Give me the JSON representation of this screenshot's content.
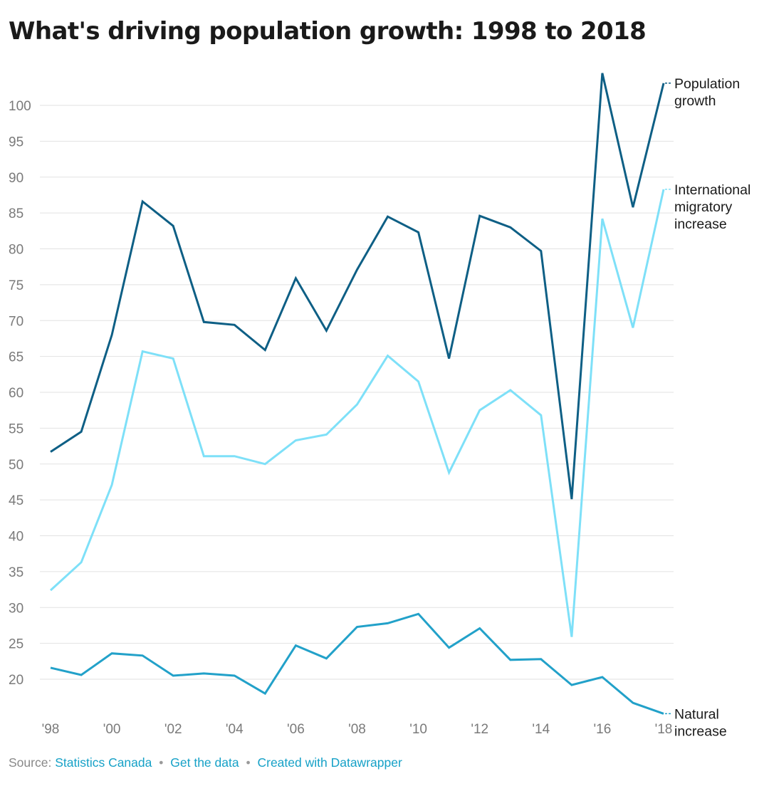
{
  "chart_data": {
    "type": "line",
    "title": "What's driving population growth: 1998 to 2018",
    "xlabel": "",
    "ylabel": "",
    "x": [
      1998,
      1999,
      2000,
      2001,
      2002,
      2003,
      2004,
      2005,
      2006,
      2007,
      2008,
      2009,
      2010,
      2011,
      2012,
      2013,
      2014,
      2015,
      2016,
      2017,
      2018
    ],
    "x_tick_labels": [
      "'98",
      "'00",
      "'02",
      "'04",
      "'06",
      "'08",
      "'10",
      "'12",
      "'14",
      "'16",
      "'18"
    ],
    "x_tick_values": [
      1998,
      2000,
      2002,
      2004,
      2006,
      2008,
      2010,
      2012,
      2014,
      2016,
      2018
    ],
    "y_ticks": [
      20,
      25,
      30,
      35,
      40,
      45,
      50,
      55,
      60,
      65,
      70,
      75,
      80,
      85,
      90,
      95,
      100
    ],
    "xlim": [
      1998,
      2018
    ],
    "ylim": [
      15.2,
      105
    ],
    "grid": true,
    "legend": "direct labels at right end of lines",
    "series": [
      {
        "name": "Population growth",
        "label_lines": [
          "Population",
          "growth"
        ],
        "color": "#0e5f85",
        "values": [
          51.7,
          54.5,
          68.0,
          86.6,
          83.2,
          69.8,
          69.4,
          65.9,
          75.9,
          68.6,
          77.1,
          84.5,
          82.3,
          64.7,
          84.6,
          83.0,
          79.7,
          45.1,
          104.5,
          85.8,
          103.1
        ]
      },
      {
        "name": "International migratory increase",
        "label_lines": [
          "International",
          "migratory",
          "increase"
        ],
        "color": "#7ee0f8",
        "values": [
          32.4,
          36.3,
          47.1,
          65.7,
          64.7,
          51.1,
          51.1,
          50.0,
          53.3,
          54.1,
          58.3,
          65.1,
          61.5,
          48.8,
          57.5,
          60.3,
          56.8,
          25.9,
          84.2,
          69.0,
          88.3
        ]
      },
      {
        "name": "Natural increase",
        "label_lines": [
          "Natural",
          "increase"
        ],
        "color": "#22a1c9",
        "values": [
          21.6,
          20.6,
          23.6,
          23.3,
          20.5,
          20.8,
          20.5,
          18.0,
          24.7,
          22.9,
          27.3,
          27.8,
          29.1,
          24.4,
          27.1,
          22.7,
          22.8,
          19.2,
          20.3,
          16.7,
          15.2
        ]
      }
    ]
  },
  "colors": {
    "grid": "#e2e2e2",
    "tick_text": "#7a7a7a",
    "link": "#16a1c7"
  },
  "footer": {
    "source_prefix": "Source:",
    "source_link": "Statistics Canada",
    "separator": "•",
    "get_data": "Get the data",
    "created_with": "Created with Datawrapper"
  }
}
